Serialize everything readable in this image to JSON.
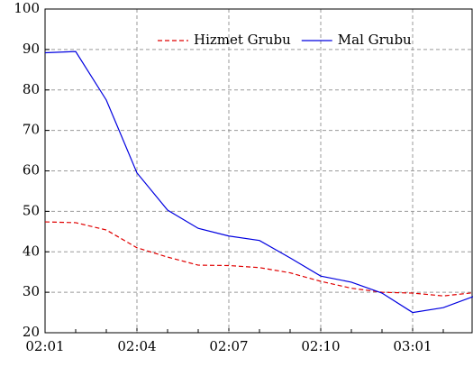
{
  "chart_data": {
    "type": "line",
    "categories": [
      "02:01",
      null,
      null,
      "02:04",
      null,
      null,
      "02:07",
      null,
      null,
      "02:10",
      null,
      null,
      "03:01",
      null,
      null
    ],
    "series": [
      {
        "name": "Hizmet Grubu",
        "color": "#e00000",
        "dash": true,
        "values": [
          47.4,
          47.2,
          45.4,
          41.0,
          38.7,
          36.7,
          36.6,
          36.1,
          34.8,
          32.7,
          31.0,
          30.0,
          29.8,
          29.1,
          29.9
        ]
      },
      {
        "name": "Mal Grubu",
        "color": "#0000e0",
        "dash": false,
        "values": [
          89.2,
          89.5,
          77.5,
          59.5,
          50.3,
          45.8,
          43.9,
          42.8,
          38.5,
          34.0,
          32.5,
          29.8,
          25.0,
          26.2,
          29.0
        ]
      }
    ],
    "ylim": [
      20,
      100
    ],
    "yticks": [
      20,
      30,
      40,
      50,
      60,
      70,
      80,
      90,
      100
    ],
    "grid": true,
    "legend": "top-right"
  }
}
